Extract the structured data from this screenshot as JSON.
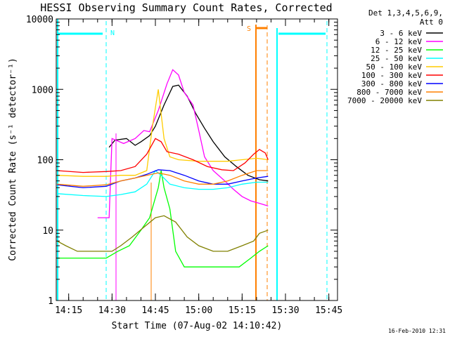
{
  "chart_data": {
    "type": "line",
    "title": "HESSI Observing Summary Count Rates, Corrected",
    "xlabel": "Start Time (07-Aug-02 14:10:42)",
    "ylabel": "Corrected Count Rate (s⁻¹ detector⁻¹)",
    "yscale": "log",
    "ylim": [
      1,
      10000
    ],
    "xlim": [
      "14:10:42",
      "15:48:00"
    ],
    "x_ticks": [
      "14:15",
      "14:30",
      "14:45",
      "15:00",
      "15:15",
      "15:30",
      "15:45"
    ],
    "y_ticks": [
      "1",
      "10",
      "100",
      "1000",
      "10000"
    ],
    "legend_title_1": "Det 1,3,4,5,6,9,",
    "legend_title_2": "Att 0",
    "legend_position": "top-right",
    "series": [
      {
        "name": "3 - 6 keV",
        "color": "#000000",
        "points": [
          [
            "14:29",
            150
          ],
          [
            "14:31",
            190
          ],
          [
            "14:35",
            200
          ],
          [
            "14:38",
            160
          ],
          [
            "14:40",
            180
          ],
          [
            "14:43",
            220
          ],
          [
            "14:45",
            300
          ],
          [
            "14:48",
            600
          ],
          [
            "14:51",
            1100
          ],
          [
            "14:53",
            1150
          ],
          [
            "14:56",
            800
          ],
          [
            "14:59",
            450
          ],
          [
            "15:02",
            280
          ],
          [
            "15:05",
            180
          ],
          [
            "15:09",
            110
          ],
          [
            "15:13",
            80
          ],
          [
            "15:17",
            60
          ],
          [
            "15:21",
            52
          ],
          [
            "15:24",
            50
          ]
        ]
      },
      {
        "name": "6 - 12 keV",
        "color": "#ff00ff",
        "points": [
          [
            "14:25",
            15
          ],
          [
            "14:29",
            15
          ],
          [
            "14:30",
            200
          ],
          [
            "14:34",
            170
          ],
          [
            "14:38",
            200
          ],
          [
            "14:41",
            260
          ],
          [
            "14:43",
            250
          ],
          [
            "14:46",
            500
          ],
          [
            "14:49",
            1200
          ],
          [
            "14:51",
            1900
          ],
          [
            "14:53",
            1600
          ],
          [
            "14:55",
            900
          ],
          [
            "14:58",
            600
          ],
          [
            "15:00",
            260
          ],
          [
            "15:02",
            110
          ],
          [
            "15:05",
            70
          ],
          [
            "15:09",
            50
          ],
          [
            "15:12",
            38
          ],
          [
            "15:15",
            30
          ],
          [
            "15:18",
            26
          ],
          [
            "15:21",
            24
          ],
          [
            "15:24",
            22
          ]
        ]
      },
      {
        "name": "12 - 25 keV",
        "color": "#00ff00",
        "points": [
          [
            "14:11",
            4
          ],
          [
            "14:24",
            4
          ],
          [
            "14:28",
            4
          ],
          [
            "14:32",
            5
          ],
          [
            "14:36",
            6
          ],
          [
            "14:40",
            10
          ],
          [
            "14:43",
            15
          ],
          [
            "14:46",
            40
          ],
          [
            "14:47",
            70
          ],
          [
            "14:48",
            40
          ],
          [
            "14:50",
            20
          ],
          [
            "14:52",
            5
          ],
          [
            "14:55",
            3
          ],
          [
            "15:00",
            3
          ],
          [
            "15:05",
            3
          ],
          [
            "15:10",
            3
          ],
          [
            "15:14",
            3
          ],
          [
            "15:18",
            4
          ],
          [
            "15:21",
            5
          ],
          [
            "15:24",
            6
          ]
        ]
      },
      {
        "name": "25 - 50 keV",
        "color": "#00ffff",
        "points": [
          [
            "14:11",
            33
          ],
          [
            "14:20",
            31
          ],
          [
            "14:28",
            30
          ],
          [
            "14:33",
            32
          ],
          [
            "14:38",
            35
          ],
          [
            "14:42",
            45
          ],
          [
            "14:45",
            70
          ],
          [
            "14:47",
            60
          ],
          [
            "14:50",
            45
          ],
          [
            "14:55",
            40
          ],
          [
            "15:00",
            38
          ],
          [
            "15:05",
            38
          ],
          [
            "15:10",
            40
          ],
          [
            "15:15",
            45
          ],
          [
            "15:20",
            48
          ],
          [
            "15:24",
            48
          ]
        ]
      },
      {
        "name": "50 - 100 keV",
        "color": "#ffcc00",
        "points": [
          [
            "14:11",
            60
          ],
          [
            "14:20",
            58
          ],
          [
            "14:28",
            58
          ],
          [
            "14:33",
            60
          ],
          [
            "14:38",
            60
          ],
          [
            "14:42",
            70
          ],
          [
            "14:44",
            300
          ],
          [
            "14:46",
            1000
          ],
          [
            "14:48",
            200
          ],
          [
            "14:50",
            110
          ],
          [
            "14:53",
            100
          ],
          [
            "15:00",
            95
          ],
          [
            "15:05",
            95
          ],
          [
            "15:10",
            95
          ],
          [
            "15:15",
            100
          ],
          [
            "15:20",
            105
          ],
          [
            "15:24",
            100
          ]
        ]
      },
      {
        "name": "100 - 300 keV",
        "color": "#ff0000",
        "points": [
          [
            "14:11",
            70
          ],
          [
            "14:20",
            66
          ],
          [
            "14:28",
            68
          ],
          [
            "14:33",
            70
          ],
          [
            "14:38",
            80
          ],
          [
            "14:42",
            120
          ],
          [
            "14:45",
            200
          ],
          [
            "14:47",
            180
          ],
          [
            "14:49",
            130
          ],
          [
            "14:53",
            120
          ],
          [
            "14:58",
            100
          ],
          [
            "15:03",
            80
          ],
          [
            "15:08",
            72
          ],
          [
            "15:12",
            70
          ],
          [
            "15:16",
            90
          ],
          [
            "15:19",
            120
          ],
          [
            "15:21",
            140
          ],
          [
            "15:23",
            125
          ],
          [
            "15:24",
            100
          ]
        ]
      },
      {
        "name": "300 - 800 keV",
        "color": "#0000ff",
        "points": [
          [
            "14:11",
            44
          ],
          [
            "14:20",
            40
          ],
          [
            "14:28",
            42
          ],
          [
            "14:33",
            50
          ],
          [
            "14:38",
            55
          ],
          [
            "14:42",
            62
          ],
          [
            "14:46",
            72
          ],
          [
            "14:50",
            70
          ],
          [
            "14:55",
            60
          ],
          [
            "15:00",
            50
          ],
          [
            "15:05",
            45
          ],
          [
            "15:10",
            45
          ],
          [
            "15:15",
            50
          ],
          [
            "15:20",
            55
          ],
          [
            "15:24",
            58
          ]
        ]
      },
      {
        "name": "800 - 7000 keV",
        "color": "#ff8000",
        "points": [
          [
            "14:11",
            45
          ],
          [
            "14:20",
            42
          ],
          [
            "14:28",
            44
          ],
          [
            "14:33",
            50
          ],
          [
            "14:38",
            55
          ],
          [
            "14:42",
            60
          ],
          [
            "14:46",
            65
          ],
          [
            "14:50",
            60
          ],
          [
            "14:55",
            50
          ],
          [
            "15:00",
            45
          ],
          [
            "15:05",
            45
          ],
          [
            "15:10",
            50
          ],
          [
            "15:15",
            60
          ],
          [
            "15:20",
            70
          ],
          [
            "15:24",
            70
          ]
        ]
      },
      {
        "name": "7000 - 20000 keV",
        "color": "#808000",
        "points": [
          [
            "14:11",
            7
          ],
          [
            "14:14",
            6
          ],
          [
            "14:18",
            5
          ],
          [
            "14:22",
            5
          ],
          [
            "14:26",
            5
          ],
          [
            "14:30",
            5
          ],
          [
            "14:33",
            6
          ],
          [
            "14:37",
            8
          ],
          [
            "14:41",
            11
          ],
          [
            "14:45",
            15
          ],
          [
            "14:48",
            16
          ],
          [
            "14:52",
            13
          ],
          [
            "14:56",
            8
          ],
          [
            "15:00",
            6
          ],
          [
            "15:05",
            5
          ],
          [
            "15:10",
            5
          ],
          [
            "15:15",
            6
          ],
          [
            "15:19",
            7
          ],
          [
            "15:21",
            9
          ],
          [
            "15:24",
            10
          ]
        ]
      }
    ],
    "annotations": [
      {
        "label": "N",
        "color": "#00ffff",
        "times": [
          "14:11",
          "14:28"
        ]
      },
      {
        "label": "S",
        "color": "#ff8000",
        "times": [
          "15:22",
          "15:26"
        ]
      }
    ],
    "timestamp": "16-Feb-2010 12:31"
  }
}
